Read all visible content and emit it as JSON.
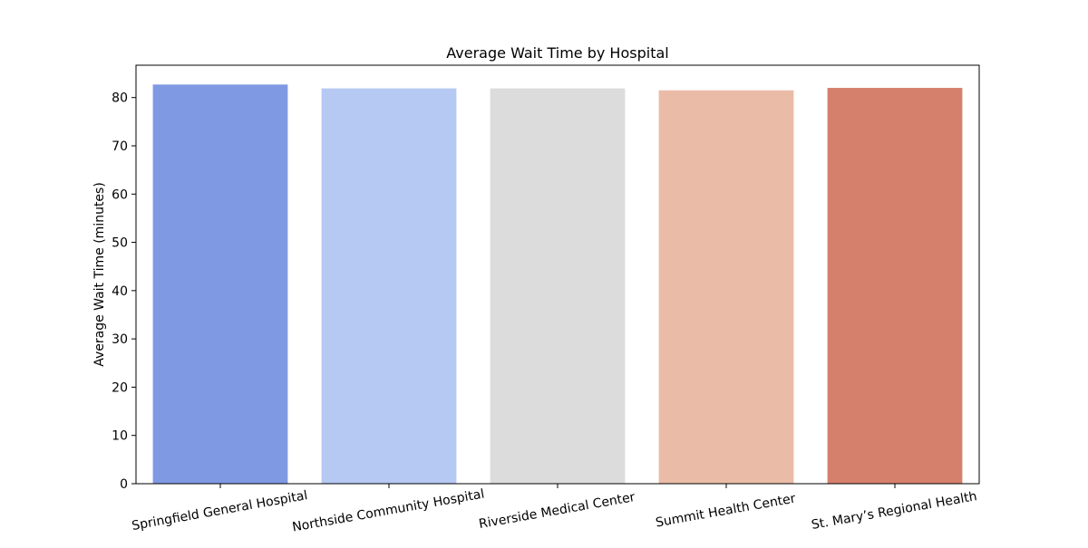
{
  "chart_data": {
    "type": "bar",
    "title": "Average Wait Time by Hospital",
    "xlabel": "",
    "ylabel": "Average Wait Time (minutes)",
    "categories": [
      "Springfield General Hospital",
      "Northside Community Hospital",
      "Riverside Medical Center",
      "Summit Health Center",
      "St. Mary’s Regional Health"
    ],
    "values": [
      82.7,
      81.9,
      81.9,
      81.5,
      82.0
    ],
    "ylim": [
      0,
      86.7
    ],
    "yticks": [
      0,
      10,
      20,
      30,
      40,
      50,
      60,
      70,
      80
    ],
    "colors": [
      "#8099e3",
      "#b5c9f3",
      "#dcdcdc",
      "#eabca7",
      "#d5806d"
    ],
    "grid": false,
    "legend": "none"
  }
}
